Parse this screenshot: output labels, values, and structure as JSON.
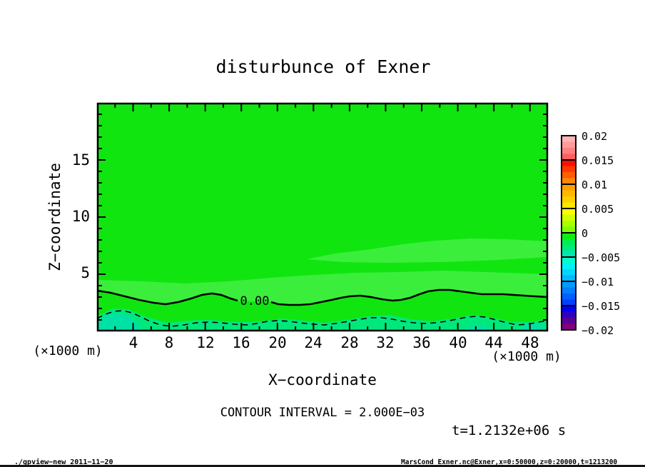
{
  "page": {
    "background": "#ffffff",
    "bottom_strip_color": "#151515"
  },
  "title": "disturbunce of Exner",
  "axes": {
    "x": {
      "label": "X−coordinate",
      "unit_note_left": "(×1000 m)",
      "unit_note_right": "(×1000 m)",
      "tick_labels": [
        "4",
        "8",
        "12",
        "16",
        "20",
        "24",
        "28",
        "32",
        "36",
        "40",
        "44",
        "48"
      ]
    },
    "y": {
      "label": "Z−coordinate",
      "tick_labels": [
        "15",
        "10",
        "5"
      ]
    }
  },
  "annotations": {
    "contour_interval": "CONTOUR INTERVAL = 2.000E−03",
    "time": "t=1.2132e+06 s",
    "zero_contour_label": "0.00"
  },
  "footer": {
    "left": "./gpview−new  2011−11−20",
    "right": "MarsCond_Exner.nc@Exner,x=0:50000,z=0:20000,t=1213200"
  },
  "colorbar": {
    "labels": [
      "0.02",
      "0.015",
      "0.01",
      "0.005",
      "0",
      "−0.005",
      "−0.01",
      "−0.015",
      "−0.02"
    ],
    "cells": [
      [
        "#ffb4b4",
        "#ff9b9b",
        "#ff8080",
        "#ff5f5f"
      ],
      [
        "#ff0f00",
        "#ff3700",
        "#ff5f00",
        "#ff8700"
      ],
      [
        "#ff9f00",
        "#ffb700",
        "#ffcf00",
        "#ffe700"
      ],
      [
        "#fdff00",
        "#d2ff00",
        "#a7ff00",
        "#7cff00"
      ],
      [
        "#0cf00c",
        "#00ee4e",
        "#00ea82",
        "#00e6b0"
      ],
      [
        "#00ffcc",
        "#00f2f2",
        "#00d8ff",
        "#00baff"
      ],
      [
        "#009cff",
        "#0080ff",
        "#0060ff",
        "#0040ff"
      ],
      [
        "#0000f0",
        "#3000c0",
        "#580096",
        "#80007e"
      ]
    ]
  },
  "plot": {
    "field_colors": {
      "main": "#10e510",
      "light": "#3cee3c",
      "spring": "#00e87c",
      "teal": "#00e1a6"
    },
    "render": {
      "bands": [
        {
          "color": "light",
          "points": [
            [
              430,
              363
            ],
            [
              470,
              355
            ],
            [
              520,
              349
            ],
            [
              565,
              342
            ],
            [
              610,
              337
            ],
            [
              660,
              334
            ],
            [
              710,
              335
            ],
            [
              768,
              338
            ],
            [
              768,
              360
            ],
            [
              700,
              364
            ],
            [
              620,
              367
            ],
            [
              540,
              368
            ],
            [
              480,
              367
            ]
          ]
        },
        {
          "color": "light",
          "points": [
            [
              136,
              392
            ],
            [
              200,
              394
            ],
            [
              260,
              397
            ],
            [
              320,
              394
            ],
            [
              380,
              389
            ],
            [
              440,
              385
            ],
            [
              500,
              382
            ],
            [
              560,
              381
            ],
            [
              620,
              379
            ],
            [
              680,
              381
            ],
            [
              768,
              384
            ],
            [
              768,
              416
            ],
            [
              750,
              415
            ],
            [
              735,
              414
            ],
            [
              720,
              413
            ],
            [
              705,
              412
            ],
            [
              690,
              412
            ],
            [
              675,
              412
            ],
            [
              660,
              410
            ],
            [
              645,
              408
            ],
            [
              630,
              406
            ],
            [
              615,
              406
            ],
            [
              600,
              408
            ],
            [
              588,
              412
            ],
            [
              575,
              417
            ],
            [
              562,
              420
            ],
            [
              550,
              421
            ],
            [
              535,
              419
            ],
            [
              520,
              416
            ],
            [
              505,
              414
            ],
            [
              490,
              415
            ],
            [
              478,
              417
            ],
            [
              465,
              420
            ],
            [
              450,
              423
            ],
            [
              435,
              426
            ],
            [
              420,
              427
            ],
            [
              405,
              427
            ],
            [
              390,
              426
            ],
            [
              377,
              423
            ],
            [
              356,
              422
            ],
            [
              336,
              422
            ],
            [
              323,
              418
            ],
            [
              310,
              413
            ],
            [
              297,
              411
            ],
            [
              283,
              413
            ],
            [
              268,
              418
            ],
            [
              250,
              423
            ],
            [
              232,
              426
            ],
            [
              215,
              424
            ],
            [
              195,
              420
            ],
            [
              175,
              415
            ],
            [
              155,
              410
            ],
            [
              136,
              407
            ]
          ]
        },
        {
          "color": "spring",
          "points": [
            [
              136,
              443
            ],
            [
              158,
              432
            ],
            [
              180,
              433
            ],
            [
              205,
              444
            ],
            [
              235,
              452
            ],
            [
              265,
              449
            ],
            [
              295,
              448
            ],
            [
              330,
              451
            ],
            [
              365,
              450
            ],
            [
              395,
              446
            ],
            [
              425,
              449
            ],
            [
              455,
              452
            ],
            [
              485,
              448
            ],
            [
              515,
              443
            ],
            [
              545,
              441
            ],
            [
              575,
              447
            ],
            [
              605,
              450
            ],
            [
              635,
              446
            ],
            [
              662,
              441
            ],
            [
              690,
              445
            ],
            [
              718,
              451
            ],
            [
              745,
              451
            ],
            [
              768,
              446
            ],
            [
              768,
              464
            ],
            [
              136,
              464
            ]
          ]
        },
        {
          "color": "teal",
          "points": [
            [
              136,
              464
            ],
            [
              137,
              452
            ],
            [
              144,
              444
            ],
            [
              154,
              439
            ],
            [
              167,
              438
            ],
            [
              179,
              442
            ],
            [
              189,
              449
            ],
            [
              196,
              457
            ],
            [
              199,
              464
            ]
          ]
        },
        {
          "color": "teal",
          "points": [
            [
              648,
              464
            ],
            [
              655,
              458
            ],
            [
              668,
              455
            ],
            [
              681,
              457
            ],
            [
              690,
              461
            ],
            [
              694,
              464
            ]
          ]
        },
        {
          "color": "teal",
          "points": [
            [
              726,
              464
            ],
            [
              733,
              457
            ],
            [
              743,
              453
            ],
            [
              754,
              454
            ],
            [
              763,
              459
            ],
            [
              768,
              463
            ],
            [
              768,
              464
            ]
          ]
        }
      ],
      "contours": [
        {
          "style": "solid",
          "segments": [
            [
              [
                136,
                407
              ],
              [
                155,
                410
              ],
              [
                175,
                415
              ],
              [
                195,
                420
              ],
              [
                215,
                424
              ],
              [
                232,
                426
              ],
              [
                250,
                423
              ],
              [
                268,
                418
              ],
              [
                283,
                413
              ],
              [
                297,
                411
              ],
              [
                310,
                413
              ],
              [
                323,
                418
              ],
              [
                333,
                421
              ]
            ],
            [
              [
                380,
                423
              ],
              [
                390,
                426
              ],
              [
                405,
                427
              ],
              [
                420,
                427
              ],
              [
                435,
                426
              ],
              [
                450,
                423
              ],
              [
                465,
                420
              ],
              [
                478,
                417
              ],
              [
                490,
                415
              ],
              [
                505,
                414
              ],
              [
                520,
                416
              ],
              [
                535,
                419
              ],
              [
                550,
                421
              ],
              [
                562,
                420
              ],
              [
                575,
                417
              ],
              [
                588,
                412
              ],
              [
                600,
                408
              ],
              [
                615,
                406
              ],
              [
                630,
                406
              ],
              [
                645,
                408
              ],
              [
                660,
                410
              ],
              [
                675,
                412
              ],
              [
                690,
                412
              ],
              [
                705,
                412
              ],
              [
                720,
                413
              ],
              [
                735,
                414
              ],
              [
                750,
                415
              ],
              [
                768,
                416
              ]
            ]
          ]
        },
        {
          "style": "dashed",
          "segments": [
            [
              [
                136,
                446
              ],
              [
                148,
                440
              ],
              [
                160,
                436
              ],
              [
                172,
                435
              ],
              [
                185,
                438
              ],
              [
                198,
                444
              ],
              [
                210,
                450
              ],
              [
                225,
                455
              ],
              [
                240,
                457
              ],
              [
                258,
                455
              ],
              [
                275,
                452
              ],
              [
                292,
                451
              ],
              [
                310,
                452
              ],
              [
                328,
                454
              ],
              [
                345,
                455
              ],
              [
                360,
                453
              ],
              [
                375,
                450
              ],
              [
                390,
                449
              ],
              [
                405,
                450
              ],
              [
                420,
                452
              ],
              [
                438,
                454
              ],
              [
                455,
                455
              ],
              [
                470,
                453
              ],
              [
                488,
                450
              ],
              [
                505,
                447
              ],
              [
                520,
                445
              ],
              [
                535,
                445
              ],
              [
                550,
                447
              ],
              [
                565,
                450
              ],
              [
                580,
                452
              ],
              [
                595,
                453
              ],
              [
                610,
                452
              ],
              [
                625,
                450
              ],
              [
                640,
                447
              ],
              [
                655,
                444
              ],
              [
                668,
                443
              ],
              [
                680,
                444
              ],
              [
                695,
                448
              ],
              [
                710,
                452
              ],
              [
                725,
                455
              ],
              [
                740,
                454
              ],
              [
                755,
                451
              ],
              [
                768,
                449
              ]
            ]
          ]
        }
      ]
    }
  },
  "chart_data": {
    "type": "heatmap",
    "subtype": "filled_contour_xz_section",
    "title": "disturbunce of Exner",
    "xlabel": "X-coordinate (x1000 m)",
    "ylabel": "Z-coordinate (x1000 m)",
    "xlim": [
      0,
      50
    ],
    "ylim": [
      0,
      20
    ],
    "x_ticks": [
      4,
      8,
      12,
      16,
      20,
      24,
      28,
      32,
      36,
      40,
      44,
      48
    ],
    "y_ticks": [
      5,
      10,
      15
    ],
    "grid": false,
    "legend_position": "right-colorbar",
    "colorbar_levels": [
      0.02,
      0.015,
      0.01,
      0.005,
      0,
      -0.005,
      -0.01,
      -0.015,
      -0.02
    ],
    "contour_interval": 0.002,
    "time_seconds": 1213200,
    "field_summary": "Exner-function disturbance nearly 0 over the whole section (green shades); slightly positive above a wavy zero line near z=2.3-3.6 km, slightly negative (down to about -0.004) in a shallow layer below it near the surface.",
    "zero_contour": {
      "style": "solid",
      "x": [
        0,
        3,
        6,
        9,
        12,
        15,
        19,
        22,
        25,
        28,
        31,
        34,
        37,
        40,
        43,
        46,
        50
      ],
      "z": [
        3.6,
        3.1,
        2.5,
        2.6,
        3.2,
        2.6,
        2.6,
        2.3,
        2.6,
        3.1,
        2.8,
        2.8,
        3.6,
        3.5,
        3.3,
        3.2,
        3.0
      ]
    },
    "negative_contour": {
      "style": "dashed",
      "level": -0.002,
      "x": [
        0,
        3,
        6,
        9,
        12,
        15,
        18,
        21,
        24,
        27,
        30,
        33,
        36,
        39,
        42,
        45,
        48,
        50
      ],
      "z": [
        1.1,
        1.8,
        0.9,
        0.5,
        0.8,
        0.6,
        0.7,
        0.9,
        0.6,
        0.7,
        1.2,
        1.1,
        0.8,
        0.7,
        1.3,
        1.2,
        0.6,
        0.9
      ]
    }
  }
}
